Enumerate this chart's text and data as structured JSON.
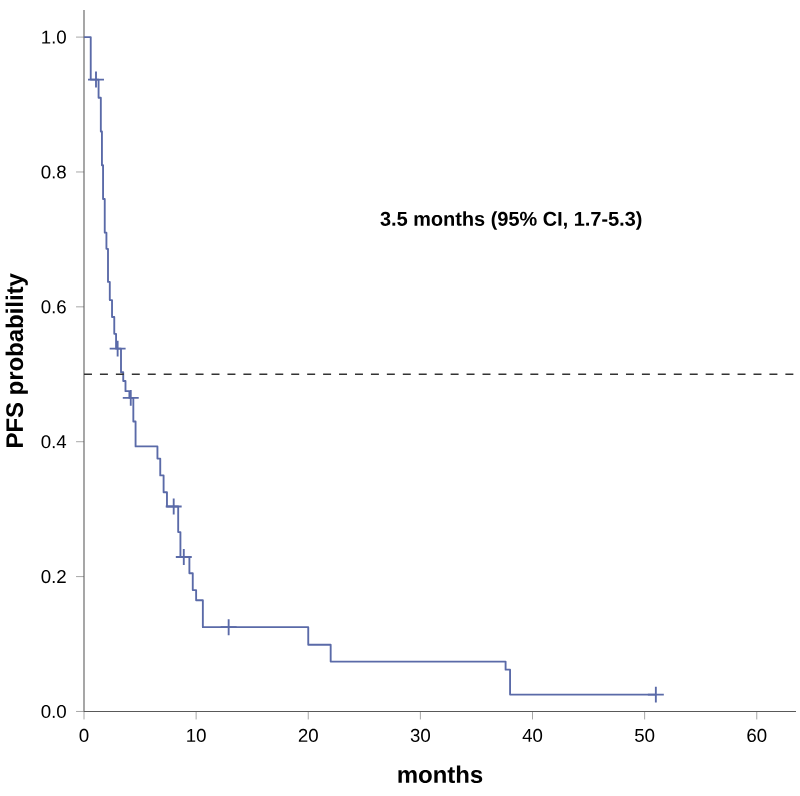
{
  "chart_data": {
    "type": "step",
    "xlabel": "months",
    "ylabel": "PFS probability",
    "annotations": [
      "3.5 months (95% CI, 1.7-5.3)"
    ],
    "xlim": [
      0,
      63.5
    ],
    "ylim": [
      0,
      1.04
    ],
    "xticks": [
      0,
      10,
      20,
      30,
      40,
      50,
      60
    ],
    "yticks": [
      {
        "value": 0,
        "label": "0.0"
      },
      {
        "value": 0.2,
        "label": "0.2"
      },
      {
        "value": 0.4,
        "label": "0.4"
      },
      {
        "value": 0.6,
        "label": "0.6"
      },
      {
        "value": 0.8,
        "label": "0.8"
      },
      {
        "value": 1,
        "label": "1.0"
      }
    ],
    "ref_lines": [
      {
        "axis": "y",
        "value": 0.5,
        "color": "#333333",
        "line_style": "dashed"
      }
    ],
    "series": [
      {
        "color": "#5a6aa8",
        "x": [
          0,
          0.6,
          1.3,
          1.5,
          1.6,
          1.7,
          1.85,
          2.0,
          2.14,
          2.3,
          2.5,
          2.7,
          2.86,
          3.3,
          3.5,
          3.7,
          4.05,
          4.4,
          4.6,
          6.55,
          6.8,
          7.1,
          7.4,
          8.4,
          8.6,
          9.4,
          9.7,
          10,
          10.6,
          20,
          22,
          37.6,
          38,
          51
        ],
        "values": [
          1,
          0.937,
          0.91,
          0.86,
          0.81,
          0.76,
          0.71,
          0.686,
          0.637,
          0.61,
          0.585,
          0.56,
          0.538,
          0.503,
          0.49,
          0.475,
          0.465,
          0.43,
          0.393,
          0.375,
          0.35,
          0.325,
          0.304,
          0.266,
          0.229,
          0.205,
          0.18,
          0.165,
          0.125,
          0.099,
          0.074,
          0.062,
          0.025,
          0.025
        ]
      },
      {
        "type": "scatter",
        "marker": "cross",
        "color": "#5a6aa8",
        "x": [
          1.07,
          3.0,
          4.17,
          8.0,
          8.9,
          12.9,
          51
        ],
        "values": [
          0.937,
          0.538,
          0.465,
          0.304,
          0.229,
          0.125,
          0.025
        ]
      }
    ]
  }
}
